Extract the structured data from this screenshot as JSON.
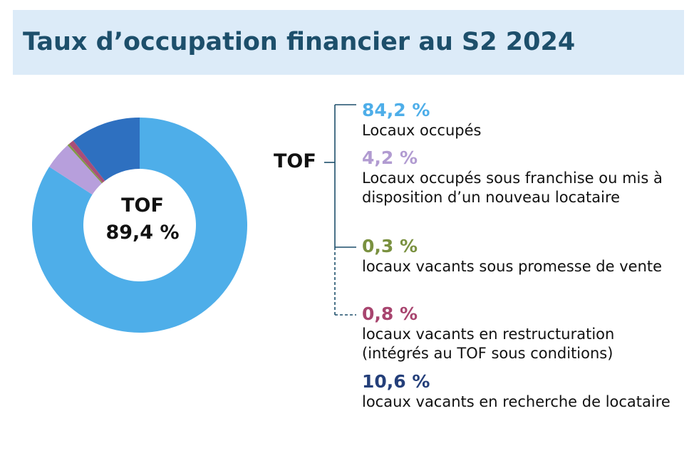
{
  "title": "Taux d’occupation financier au S2 2024",
  "center": {
    "label": "TOF",
    "value": "89,4 %"
  },
  "side_label": "TOF",
  "chart_data": {
    "type": "pie",
    "title": "Taux d’occupation financier au S2 2024",
    "slices": [
      {
        "value": 84.2,
        "label": "84,2 %",
        "name": "Locaux occupés",
        "color": "#4eaee9"
      },
      {
        "value": 4.2,
        "label": "4,2 %",
        "name": "Locaux occupés sous franchise ou mis à disposition d’un nouveau locataire",
        "color": "#b79fdc"
      },
      {
        "value": 0.3,
        "label": "0,3 %",
        "name": "locaux vacants sous promesse de vente",
        "color": "#7f9a45"
      },
      {
        "value": 0.8,
        "label": "0,8 %",
        "name": "locaux vacants en restructuration (intégrés au TOF sous conditions)",
        "color": "#a94e78"
      },
      {
        "value": 10.6,
        "label": "10,6 %",
        "name": "locaux vacants en recherche de locataire",
        "color": "#2e70c0"
      }
    ]
  },
  "legend_entries": [
    {
      "pct": "84,2 %",
      "desc": "Locaux occupés",
      "color": "#4eaee9"
    },
    {
      "pct": "4,2 %",
      "desc": "Locaux occupés sous franchise ou mis à disposition d’un nouveau locataire",
      "color": "#b19bd1"
    },
    {
      "pct": "0,3 %",
      "desc": "locaux vacants sous promesse de vente",
      "color": "#7a9140"
    },
    {
      "pct": "0,8 %",
      "desc": "locaux vacants en restructuration (intégrés au TOF sous conditions)",
      "color": "#a8456f"
    },
    {
      "pct": "10,6 %",
      "desc": "locaux vacants en recherche de locataire",
      "color": "#243f7a"
    }
  ]
}
